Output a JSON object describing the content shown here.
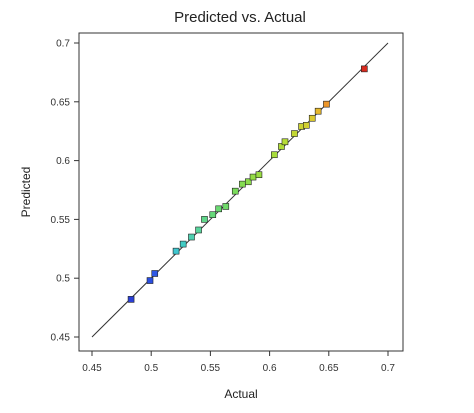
{
  "chart_data": {
    "type": "scatter",
    "title": "Predicted vs. Actual",
    "xlabel": "Actual",
    "ylabel": "Predicted",
    "xlim": [
      0.45,
      0.7
    ],
    "ylim": [
      0.45,
      0.7
    ],
    "xticks": [
      "0.45",
      "0.5",
      "0.55",
      "0.6",
      "0.65",
      "0.7"
    ],
    "yticks": [
      "0.45",
      "0.5",
      "0.55",
      "0.6",
      "0.65",
      "0.7"
    ],
    "reference_line": {
      "from": [
        0.45,
        0.45
      ],
      "to": [
        0.7,
        0.7
      ],
      "color": "#333333"
    },
    "grid": false,
    "points": [
      {
        "x": 0.483,
        "y": 0.482,
        "color": "#2a3fd6"
      },
      {
        "x": 0.499,
        "y": 0.498,
        "color": "#2a4ee0"
      },
      {
        "x": 0.503,
        "y": 0.504,
        "color": "#2f58e4"
      },
      {
        "x": 0.521,
        "y": 0.523,
        "color": "#3fc6cf"
      },
      {
        "x": 0.527,
        "y": 0.529,
        "color": "#42cbc4"
      },
      {
        "x": 0.534,
        "y": 0.535,
        "color": "#4fd0b0"
      },
      {
        "x": 0.54,
        "y": 0.541,
        "color": "#58d49c"
      },
      {
        "x": 0.545,
        "y": 0.55,
        "color": "#5fd68a"
      },
      {
        "x": 0.552,
        "y": 0.554,
        "color": "#66d87a"
      },
      {
        "x": 0.557,
        "y": 0.559,
        "color": "#6ad972"
      },
      {
        "x": 0.563,
        "y": 0.561,
        "color": "#70da6a"
      },
      {
        "x": 0.571,
        "y": 0.574,
        "color": "#7adb5c"
      },
      {
        "x": 0.577,
        "y": 0.58,
        "color": "#84dc52"
      },
      {
        "x": 0.582,
        "y": 0.582,
        "color": "#8cdc4c"
      },
      {
        "x": 0.586,
        "y": 0.586,
        "color": "#94dc46"
      },
      {
        "x": 0.591,
        "y": 0.588,
        "color": "#9adc42"
      },
      {
        "x": 0.604,
        "y": 0.605,
        "color": "#a8dc3c"
      },
      {
        "x": 0.61,
        "y": 0.612,
        "color": "#b0dc38"
      },
      {
        "x": 0.613,
        "y": 0.616,
        "color": "#b6dc36"
      },
      {
        "x": 0.621,
        "y": 0.623,
        "color": "#c4d834"
      },
      {
        "x": 0.627,
        "y": 0.629,
        "color": "#ccd432"
      },
      {
        "x": 0.631,
        "y": 0.63,
        "color": "#d2d030"
      },
      {
        "x": 0.636,
        "y": 0.636,
        "color": "#dcca2e"
      },
      {
        "x": 0.641,
        "y": 0.642,
        "color": "#e6b82c"
      },
      {
        "x": 0.648,
        "y": 0.648,
        "color": "#ec962a"
      },
      {
        "x": 0.68,
        "y": 0.678,
        "color": "#d82a1e"
      }
    ]
  }
}
